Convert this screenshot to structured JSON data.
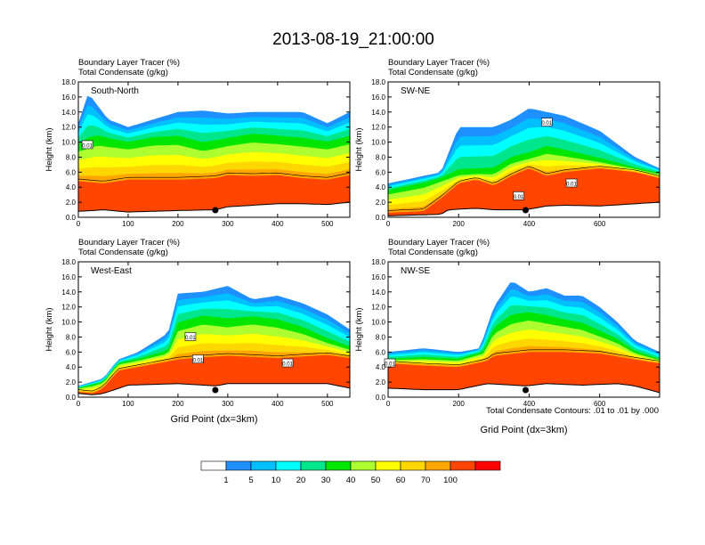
{
  "figure": {
    "title": "2013-08-19_21:00:00",
    "contour_note": "Total Condensate Contours: .01 to .01 by .000"
  },
  "colorbar": {
    "labels": [
      "1",
      "5",
      "10",
      "20",
      "30",
      "40",
      "50",
      "60",
      "70",
      "100"
    ],
    "colors": [
      "#ffffff",
      "#1e90ff",
      "#00bfff",
      "#00ffff",
      "#00e68c",
      "#00e600",
      "#adff2f",
      "#ffff00",
      "#ffd700",
      "#ffa500",
      "#ff4500",
      "#ff0000"
    ]
  },
  "chart_data": [
    {
      "type": "heatmap",
      "panel": "South-North",
      "fill_label": "Boundary Layer Tracer   (%)",
      "contour_label": "Total Condensate   (g/kg)",
      "ylabel": "Height (km)",
      "xlabel": "",
      "xlim": [
        0,
        545
      ],
      "ylim": [
        0,
        18
      ],
      "x_ticks": [
        "0",
        "100",
        "200",
        "300",
        "400",
        "500"
      ],
      "y_ticks": [
        "0.0",
        "2.0",
        "4.0",
        "6.0",
        "8.0",
        "10.0",
        "12.0",
        "14.0",
        "16.0",
        "18.0"
      ],
      "marker_x": 275,
      "contour_labels": [
        {
          "text": "0.01",
          "x": 18,
          "y": 9.6
        }
      ],
      "terrain": {
        "x": [
          0,
          30,
          50,
          100,
          200,
          275,
          300,
          400,
          450,
          500,
          545
        ],
        "y": [
          0.8,
          0.9,
          1.0,
          0.7,
          0.9,
          1.0,
          1.4,
          1.8,
          1.8,
          1.7,
          2.0
        ]
      },
      "red_top": {
        "x": [
          0,
          50,
          100,
          200,
          275,
          300,
          350,
          400,
          450,
          500,
          545
        ],
        "y": [
          4.8,
          4.5,
          5.0,
          5.0,
          5.2,
          5.6,
          5.5,
          5.6,
          5.2,
          5.0,
          5.6
        ]
      },
      "green_top": {
        "x": [
          0,
          40,
          100,
          150,
          200,
          250,
          300,
          350,
          400,
          450,
          500,
          545
        ],
        "y": [
          9.5,
          10.5,
          9.8,
          10.4,
          10.5,
          9.5,
          10.2,
          10.8,
          10.5,
          10.2,
          9.8,
          10.5
        ]
      },
      "cloud_top": {
        "x": [
          0,
          20,
          60,
          100,
          150,
          200,
          250,
          300,
          350,
          400,
          450,
          500,
          545
        ],
        "y": [
          12.5,
          16.5,
          13.0,
          12.0,
          13.0,
          14.0,
          14.2,
          13.8,
          14.0,
          14.0,
          14.0,
          12.5,
          14.0
        ]
      }
    },
    {
      "type": "heatmap",
      "panel": "SW-NE",
      "fill_label": "Boundary Layer Tracer   (%)",
      "contour_label": "Total Condensate   (g/kg)",
      "ylabel": "Height (km)",
      "xlabel": "",
      "xlim": [
        0,
        770
      ],
      "ylim": [
        0,
        18
      ],
      "x_ticks": [
        "0",
        "200",
        "400",
        "600"
      ],
      "y_ticks": [
        "0.0",
        "2.0",
        "4.0",
        "6.0",
        "8.0",
        "10.0",
        "12.0",
        "14.0",
        "16.0",
        "18.0"
      ],
      "marker_x": 390,
      "contour_labels": [
        {
          "text": "0.01",
          "x": 450,
          "y": 12.6
        },
        {
          "text": "0.01",
          "x": 370,
          "y": 2.8
        },
        {
          "text": "0.01",
          "x": 520,
          "y": 4.5
        }
      ],
      "terrain": {
        "x": [
          0,
          150,
          170,
          250,
          300,
          390,
          450,
          500,
          600,
          700,
          770
        ],
        "y": [
          0.2,
          0.4,
          1.0,
          1.2,
          1.0,
          1.0,
          1.5,
          1.6,
          1.5,
          1.8,
          2.0
        ]
      },
      "red_top": {
        "x": [
          0,
          100,
          150,
          200,
          250,
          300,
          350,
          400,
          450,
          500,
          600,
          700,
          770
        ],
        "y": [
          0.6,
          0.8,
          2.5,
          4.5,
          5.0,
          4.2,
          5.5,
          6.5,
          5.5,
          6.0,
          6.5,
          6.0,
          5.2
        ]
      },
      "green_top": {
        "x": [
          0,
          100,
          200,
          300,
          350,
          400,
          450,
          500,
          600,
          650,
          700,
          770
        ],
        "y": [
          3.5,
          4.5,
          5.8,
          6.0,
          7.5,
          8.0,
          9.0,
          8.5,
          7.5,
          7.0,
          6.5,
          5.8
        ]
      },
      "cloud_top": {
        "x": [
          0,
          150,
          200,
          300,
          350,
          400,
          450,
          500,
          550,
          600,
          700,
          770
        ],
        "y": [
          4.5,
          6.0,
          12.0,
          12.0,
          13.0,
          14.5,
          14.0,
          13.5,
          12.5,
          11.5,
          8.0,
          6.5
        ]
      }
    },
    {
      "type": "heatmap",
      "panel": "West-East",
      "fill_label": "Boundary Layer Tracer   (%)",
      "contour_label": "Total Condensate   (g/kg)",
      "ylabel": "Height (km)",
      "xlabel": "Grid Point (dx=3km)",
      "xlim": [
        0,
        545
      ],
      "ylim": [
        0,
        18
      ],
      "x_ticks": [
        "0",
        "100",
        "200",
        "300",
        "400",
        "500"
      ],
      "y_ticks": [
        "0.0",
        "2.0",
        "4.0",
        "6.0",
        "8.0",
        "10.0",
        "12.0",
        "14.0",
        "16.0",
        "18.0"
      ],
      "marker_x": 275,
      "contour_labels": [
        {
          "text": "0.01",
          "x": 225,
          "y": 8.0
        },
        {
          "text": "0.01",
          "x": 240,
          "y": 5.0
        },
        {
          "text": "0.01",
          "x": 420,
          "y": 4.5
        }
      ],
      "terrain": {
        "x": [
          0,
          30,
          50,
          100,
          200,
          275,
          300,
          400,
          500,
          545
        ],
        "y": [
          0.5,
          0.3,
          0.5,
          1.6,
          1.8,
          1.5,
          1.8,
          1.8,
          1.8,
          1.2
        ]
      },
      "red_top": {
        "x": [
          0,
          30,
          50,
          80,
          120,
          200,
          250,
          300,
          400,
          500,
          545
        ],
        "y": [
          0.7,
          0.5,
          1.2,
          3.5,
          4.0,
          5.0,
          5.3,
          5.5,
          5.2,
          5.6,
          5.2
        ]
      },
      "green_top": {
        "x": [
          0,
          50,
          80,
          120,
          180,
          200,
          250,
          300,
          350,
          400,
          450,
          500,
          545
        ],
        "y": [
          1.2,
          2.0,
          4.5,
          5.0,
          6.0,
          9.5,
          10.5,
          10.0,
          10.5,
          10.0,
          9.0,
          7.5,
          6.5
        ]
      },
      "cloud_top": {
        "x": [
          0,
          50,
          80,
          120,
          180,
          200,
          250,
          300,
          350,
          400,
          450,
          500,
          545
        ],
        "y": [
          1.5,
          2.5,
          5.0,
          6.0,
          8.5,
          13.8,
          14.0,
          14.8,
          13.0,
          13.5,
          12.5,
          11.0,
          9.0
        ]
      }
    },
    {
      "type": "heatmap",
      "panel": "NW-SE",
      "fill_label": "Boundary Layer Tracer   (%)",
      "contour_label": "Total Condensate   (g/kg)",
      "ylabel": "Height (km)",
      "xlabel": "Grid Point (dx=3km)",
      "xlim": [
        0,
        770
      ],
      "ylim": [
        0,
        18
      ],
      "x_ticks": [
        "0",
        "200",
        "400",
        "600"
      ],
      "y_ticks": [
        "0.0",
        "2.0",
        "4.0",
        "6.0",
        "8.0",
        "10.0",
        "12.0",
        "14.0",
        "16.0",
        "18.0"
      ],
      "marker_x": 390,
      "contour_labels": [
        {
          "text": "0.01",
          "x": 5,
          "y": 4.5
        }
      ],
      "terrain": {
        "x": [
          0,
          100,
          200,
          280,
          390,
          450,
          550,
          650,
          700,
          770
        ],
        "y": [
          1.2,
          1.0,
          1.0,
          1.8,
          1.5,
          1.8,
          1.6,
          1.8,
          1.5,
          0.6
        ]
      },
      "red_top": {
        "x": [
          0,
          100,
          200,
          280,
          300,
          400,
          500,
          600,
          700,
          770
        ],
        "y": [
          4.5,
          4.2,
          4.0,
          4.8,
          5.5,
          6.0,
          6.0,
          5.8,
          5.0,
          4.5
        ]
      },
      "green_top": {
        "x": [
          0,
          100,
          200,
          270,
          300,
          350,
          400,
          450,
          500,
          550,
          600,
          650,
          700,
          770
        ],
        "y": [
          5.0,
          5.2,
          5.0,
          6.0,
          9.0,
          10.5,
          11.0,
          10.5,
          10.0,
          9.5,
          8.5,
          7.5,
          6.0,
          5.0
        ]
      },
      "cloud_top": {
        "x": [
          0,
          100,
          200,
          260,
          300,
          350,
          400,
          450,
          500,
          550,
          600,
          650,
          700,
          770
        ],
        "y": [
          6.0,
          6.5,
          6.0,
          6.5,
          12.0,
          15.5,
          14.0,
          14.5,
          13.5,
          13.5,
          12.0,
          10.0,
          7.5,
          6.0
        ]
      }
    }
  ]
}
